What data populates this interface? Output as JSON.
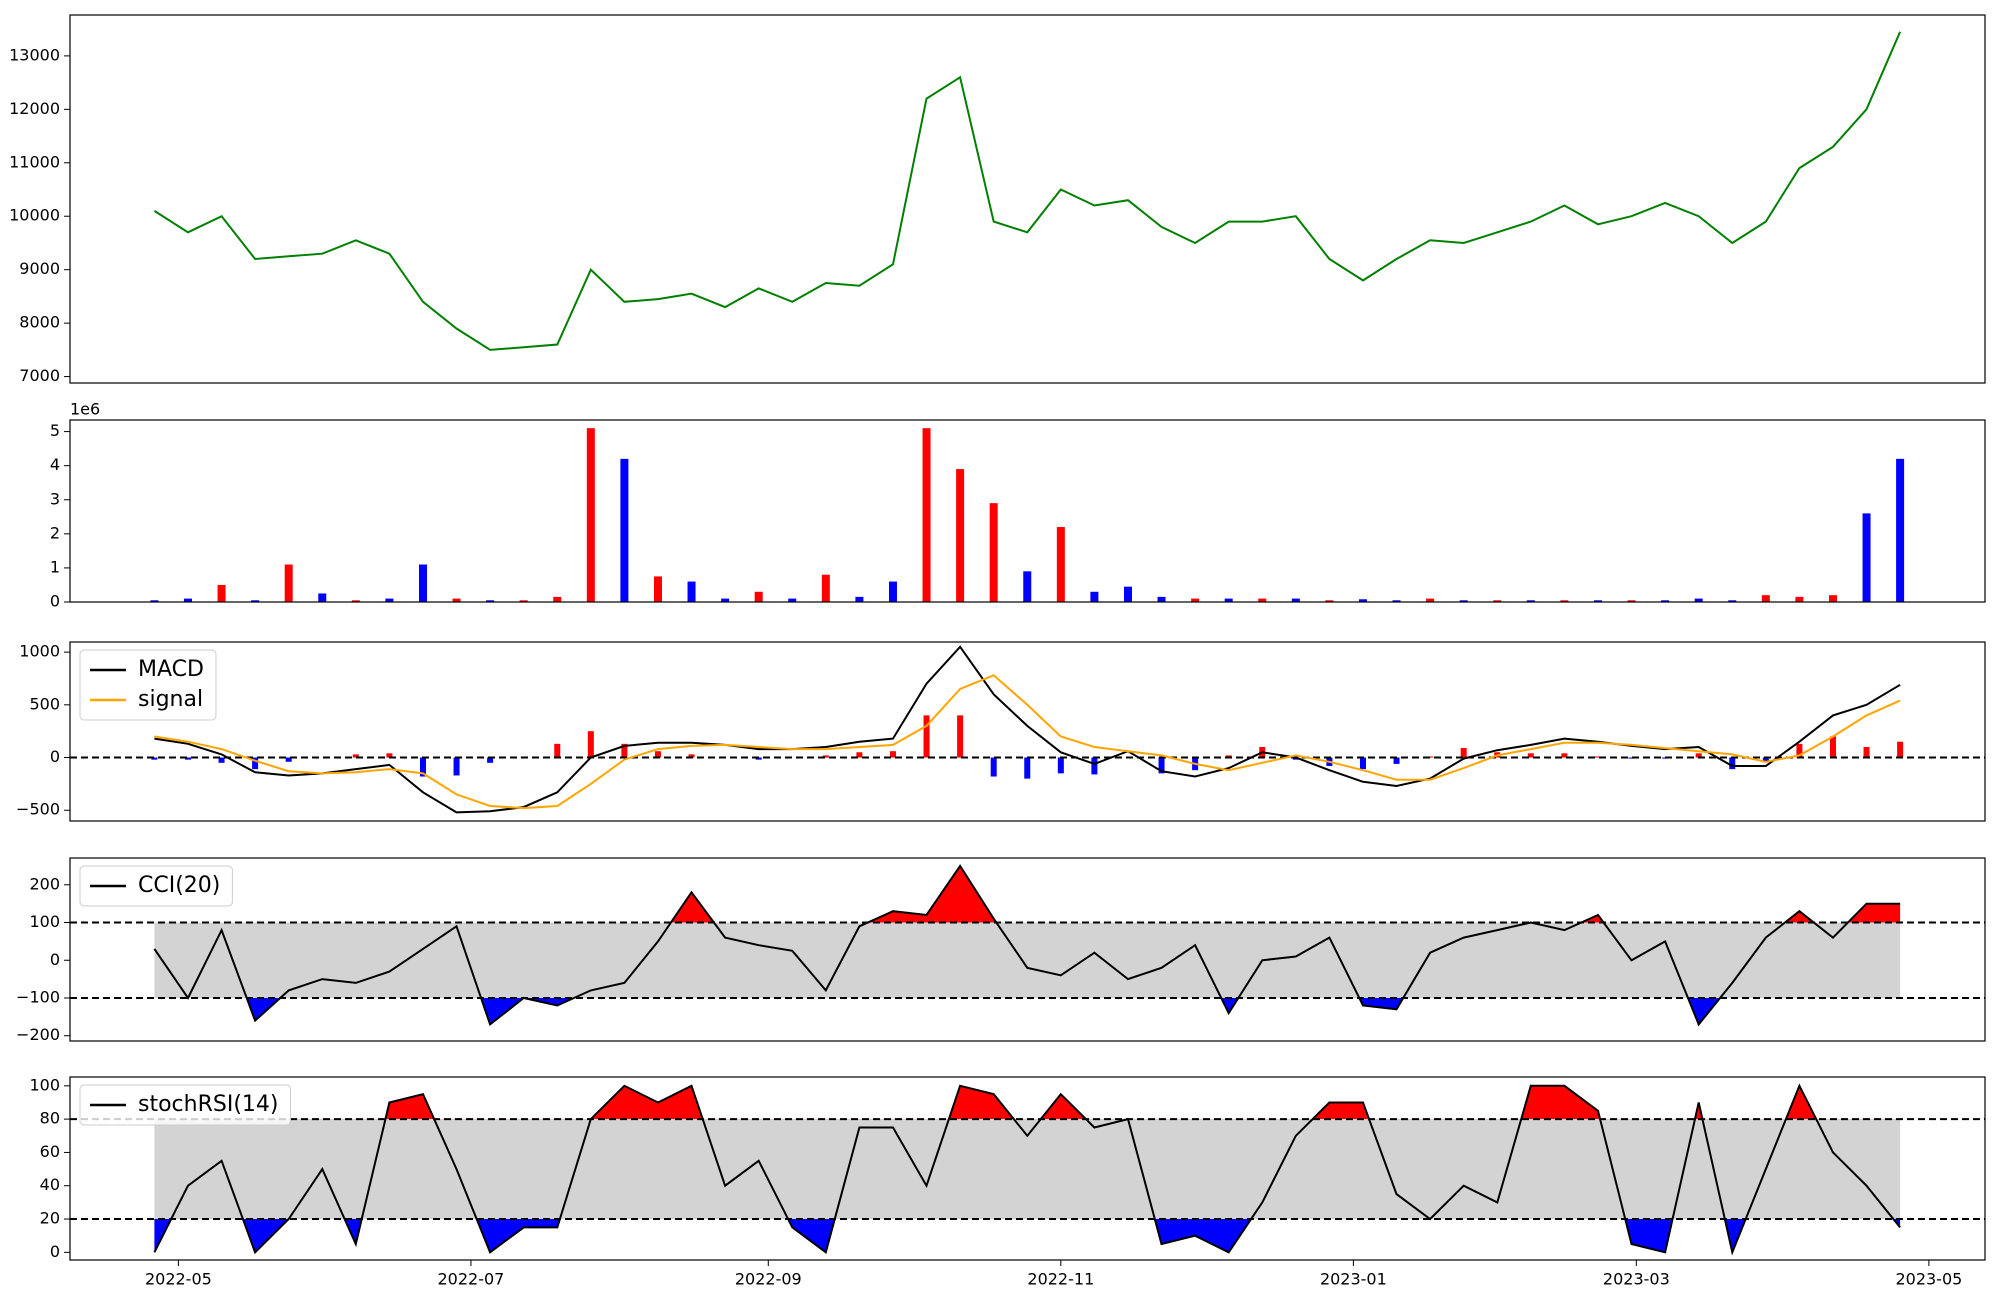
{
  "chart_data": [
    {
      "type": "line",
      "xlim": [
        19090.4,
        19489.7
      ],
      "x": [
        19108,
        19115,
        19122,
        19129,
        19136,
        19143,
        19150,
        19157,
        19164,
        19171,
        19178,
        19185,
        19192,
        19199,
        19206,
        19213,
        19220,
        19227,
        19234,
        19241,
        19248,
        19255,
        19262,
        19269,
        19276,
        19283,
        19290,
        19297,
        19304,
        19311,
        19318,
        19325,
        19332,
        19339,
        19346,
        19353,
        19360,
        19367,
        19374,
        19381,
        19388,
        19395,
        19402,
        19409,
        19416,
        19423,
        19430,
        19437,
        19444,
        19451,
        19458,
        19465,
        19472
      ],
      "ylim": [
        6880,
        13765
      ],
      "yticks": [
        7000,
        8000,
        9000,
        10000,
        11000,
        12000,
        13000
      ],
      "series": [
        {
          "color": "green",
          "values": [
            10100,
            9700,
            10000,
            9200,
            9250,
            9300,
            9550,
            9300,
            8400,
            7900,
            7500,
            7550,
            7600,
            9000,
            8400,
            8450,
            8550,
            8300,
            8650,
            8400,
            8750,
            8700,
            9100,
            12200,
            12600,
            9900,
            9700,
            10500,
            10200,
            10300,
            9800,
            9500,
            9900,
            9900,
            10000,
            9200,
            8800,
            9200,
            9550,
            9500,
            9700,
            9900,
            10200,
            9850,
            10000,
            10250,
            10000,
            9500,
            9900,
            10900,
            11300,
            12000,
            13450
          ]
        }
      ]
    },
    {
      "type": "bar",
      "y_offset_label": "1e6",
      "ylim": [
        0,
        5.34
      ],
      "yticks": [
        0,
        1,
        2,
        3,
        4,
        5
      ],
      "values": [
        0.05,
        0.1,
        0.5,
        0.05,
        1.1,
        0.25,
        0.05,
        0.1,
        1.1,
        0.1,
        0.05,
        0.05,
        0.15,
        5.1,
        4.2,
        0.75,
        0.6,
        0.1,
        0.3,
        0.1,
        0.8,
        0.15,
        0.6,
        5.1,
        3.9,
        2.9,
        0.9,
        2.2,
        0.3,
        0.45,
        0.15,
        0.1,
        0.1,
        0.1,
        0.1,
        0.05,
        0.08,
        0.05,
        0.1,
        0.05,
        0.05,
        0.05,
        0.05,
        0.05,
        0.05,
        0.05,
        0.1,
        0.05,
        0.2,
        0.15,
        0.2,
        2.6,
        4.2
      ],
      "colors": [
        "blue",
        "blue",
        "red",
        "blue",
        "red",
        "blue",
        "red",
        "blue",
        "blue",
        "red",
        "blue",
        "red",
        "red",
        "red",
        "blue",
        "red",
        "blue",
        "blue",
        "red",
        "blue",
        "red",
        "blue",
        "blue",
        "red",
        "red",
        "red",
        "blue",
        "red",
        "blue",
        "blue",
        "blue",
        "red",
        "blue",
        "red",
        "blue",
        "red",
        "blue",
        "blue",
        "red",
        "blue",
        "red",
        "blue",
        "red",
        "blue",
        "red",
        "blue",
        "blue",
        "blue",
        "red",
        "red",
        "red",
        "blue",
        "blue"
      ]
    },
    {
      "type": "macd",
      "ylim": [
        -602,
        1096
      ],
      "yticks": [
        {
          "value": -500,
          "label": "−500"
        },
        0,
        500,
        1000
      ],
      "hline": 0,
      "legend": "upper left",
      "series": [
        {
          "name": "MACD",
          "color": "black",
          "values": [
            180,
            130,
            30,
            -140,
            -170,
            -150,
            -110,
            -70,
            -330,
            -520,
            -510,
            -470,
            -330,
            0,
            110,
            140,
            140,
            120,
            80,
            80,
            100,
            150,
            180,
            700,
            1050,
            600,
            300,
            50,
            -60,
            60,
            -130,
            -180,
            -100,
            50,
            0,
            -120,
            -230,
            -270,
            -200,
            -10,
            70,
            120,
            180,
            150,
            110,
            80,
            100,
            -80,
            -80,
            150,
            400,
            500,
            690
          ]
        },
        {
          "name": "signal",
          "color": "orange",
          "values": [
            200,
            150,
            80,
            -30,
            -130,
            -150,
            -140,
            -110,
            -150,
            -350,
            -460,
            -480,
            -460,
            -250,
            -20,
            80,
            110,
            120,
            100,
            80,
            80,
            100,
            120,
            300,
            650,
            780,
            500,
            200,
            100,
            60,
            20,
            -60,
            -120,
            -50,
            20,
            -40,
            -120,
            -210,
            -210,
            -100,
            20,
            80,
            140,
            140,
            120,
            90,
            60,
            30,
            -40,
            20,
            200,
            400,
            540
          ]
        }
      ],
      "histogram": {
        "pos_color": "red",
        "neg_color": "blue",
        "values": [
          -20,
          -20,
          -50,
          -110,
          -40,
          0,
          30,
          40,
          -180,
          -170,
          -50,
          10,
          130,
          250,
          130,
          60,
          30,
          0,
          -20,
          0,
          20,
          50,
          60,
          400,
          400,
          -180,
          -200,
          -150,
          -160,
          0,
          -150,
          -120,
          20,
          100,
          -20,
          -80,
          -110,
          -60,
          10,
          90,
          50,
          40,
          40,
          10,
          -10,
          -10,
          40,
          -110,
          -40,
          130,
          200,
          100,
          150
        ]
      }
    },
    {
      "type": "oscillator",
      "ylim": [
        -214,
        271
      ],
      "yticks": [
        {
          "value": -200,
          "label": "−200"
        },
        {
          "value": -100,
          "label": "−100"
        },
        0,
        100,
        200
      ],
      "band": [
        -100,
        100
      ],
      "band_color": "lightgray",
      "above_color": "red",
      "below_color": "blue",
      "legend": "upper left",
      "series": [
        {
          "name": "CCI(20)",
          "color": "black",
          "values": [
            30,
            -100,
            80,
            -160,
            -80,
            -50,
            -60,
            -30,
            30,
            90,
            -170,
            -100,
            -120,
            -80,
            -60,
            50,
            180,
            60,
            40,
            25,
            -80,
            90,
            130,
            120,
            250,
            110,
            -20,
            -40,
            20,
            -50,
            -20,
            40,
            -140,
            0,
            10,
            60,
            -120,
            -130,
            20,
            60,
            80,
            100,
            80,
            120,
            0,
            50,
            -170,
            -60,
            60,
            130,
            60,
            150,
            150
          ]
        }
      ]
    },
    {
      "type": "oscillator",
      "ylim": [
        -4.6,
        105.3
      ],
      "yticks": [
        0,
        20,
        40,
        60,
        80,
        100
      ],
      "band": [
        20,
        80
      ],
      "band_color": "lightgray",
      "above_color": "red",
      "below_color": "blue",
      "legend": "upper left",
      "xticks": [
        {
          "value": 19113,
          "label": "2022-05"
        },
        {
          "value": 19174,
          "label": "2022-07"
        },
        {
          "value": 19236,
          "label": "2022-09"
        },
        {
          "value": 19297,
          "label": "2022-11"
        },
        {
          "value": 19358,
          "label": "2023-01"
        },
        {
          "value": 19417,
          "label": "2023-03"
        },
        {
          "value": 19478,
          "label": "2023-05"
        }
      ],
      "series": [
        {
          "name": "stochRSI(14)",
          "color": "black",
          "values": [
            0,
            40,
            55,
            0,
            20,
            50,
            5,
            90,
            95,
            50,
            0,
            15,
            15,
            80,
            100,
            90,
            100,
            40,
            55,
            15,
            0,
            75,
            75,
            40,
            100,
            95,
            70,
            95,
            75,
            80,
            5,
            10,
            0,
            30,
            70,
            90,
            90,
            35,
            20,
            40,
            30,
            100,
            100,
            85,
            5,
            0,
            90,
            0,
            50,
            100,
            60,
            40,
            15
          ]
        }
      ]
    }
  ]
}
